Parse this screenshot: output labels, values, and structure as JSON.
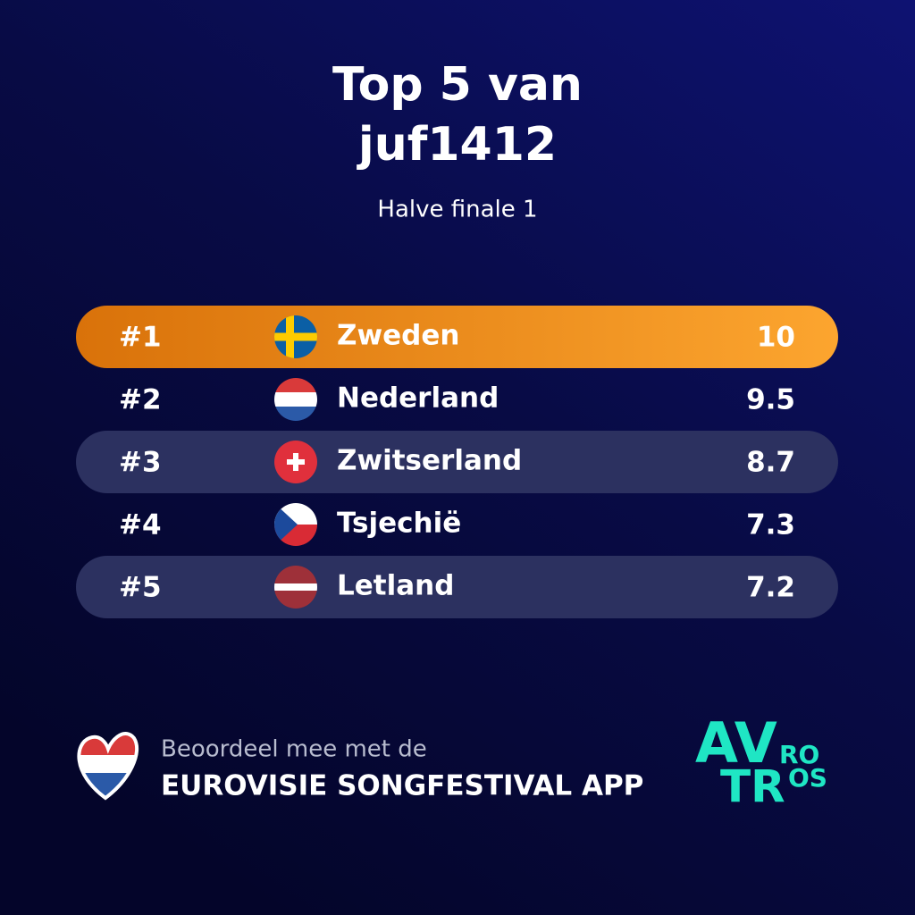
{
  "header": {
    "title": [
      "Top 5 van",
      "juf1412"
    ],
    "subtitle": "Halve finale 1"
  },
  "table": {
    "rows": [
      [
        "#1",
        "Zweden",
        10
      ],
      [
        "#2",
        "Nederland",
        9.5
      ],
      [
        "#3",
        "Zwitserland",
        8.7
      ],
      [
        "#4",
        "Tsjechië",
        7.3
      ],
      [
        "#5",
        "Letland",
        7.2
      ]
    ]
  },
  "footer": {
    "tagline": "Beoordeel mee met de",
    "app": "EUROVISIE SONGFESTIVAL APP",
    "logo": [
      "AV",
      "RO",
      "TR",
      "OS"
    ]
  }
}
